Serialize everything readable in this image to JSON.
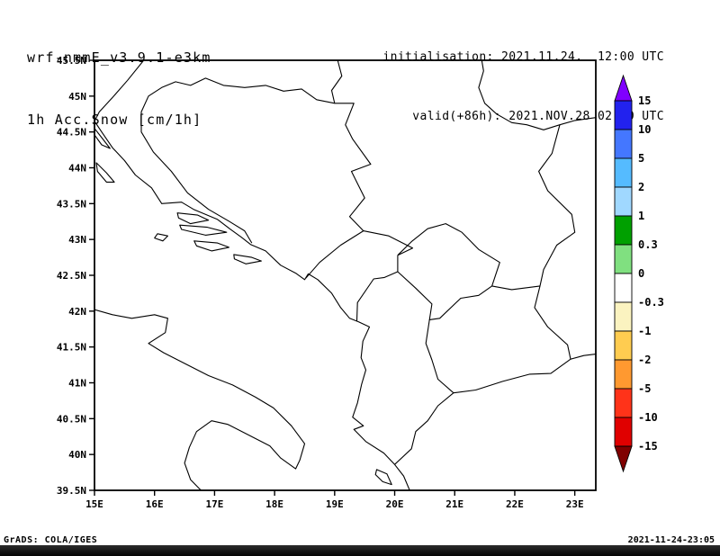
{
  "header": {
    "model": "wrf-nmmE_v3.9.1-e3km",
    "field": "1h Acc.Snow [cm/1h]",
    "init_label": "initialisation: 2021.11.24.  12:00 UTC",
    "valid_label": "valid(+86h): 2021.NOV.28 02:00 UTC"
  },
  "footer": {
    "left": "GrADS: COLA/IGES",
    "right": "2021-11-24-23:05"
  },
  "chart_data": {
    "type": "heatmap",
    "subtype": "geographic-forecast-map",
    "title": "1h Acc.Snow [cm/1h]",
    "model": "wrf-nmmE_v3.9.1-e3km",
    "initialisation": "2021.11.24. 12:00 UTC",
    "valid": "2021.NOV.28 02:00 UTC",
    "lead_hours": 86,
    "region": "western Balkans / Adriatic",
    "lon_range_deg_east": [
      15,
      23.35
    ],
    "lat_range_deg_north": [
      39.5,
      45.5
    ],
    "grid": false,
    "lat_ticks": [
      "45.5N",
      "45N",
      "44.5N",
      "44N",
      "43.5N",
      "43N",
      "42.5N",
      "42N",
      "41.5N",
      "41N",
      "40.5N",
      "40N",
      "39.5N"
    ],
    "lon_ticks": [
      "15E",
      "16E",
      "17E",
      "18E",
      "19E",
      "20E",
      "21E",
      "22E",
      "23E"
    ],
    "legend_position": "right colorbar",
    "colorbar": {
      "units": "cm/1h",
      "levels": [
        15,
        10,
        5,
        2,
        1,
        0.3,
        0,
        -0.3,
        -1,
        -2,
        -5,
        -10,
        -15
      ],
      "labels": [
        "15",
        "10",
        "5",
        "2",
        "1",
        "0.3",
        "0",
        "-0.3",
        "-1",
        "-2",
        "-5",
        "-10",
        "-15"
      ],
      "colors_top_to_bottom": [
        "#8000ff",
        "#2222ee",
        "#4477ff",
        "#55bbff",
        "#a0d8ff",
        "#00a000",
        "#80e080",
        "#ffffff",
        "#fbf3c0",
        "#ffcc50",
        "#ff9930",
        "#ff3319",
        "#e00000",
        "#800000"
      ]
    },
    "note": "no colored snow-accumulation shading visible anywhere in the domain; map shows only black coastlines and country borders on white"
  },
  "map_geo": {
    "coastlines": [
      {
        "name": "adriatic-east-coast",
        "pts": [
          [
            15.82,
            45.5
          ],
          [
            15.55,
            45.22
          ],
          [
            15.3,
            44.98
          ],
          [
            15.08,
            44.78
          ],
          [
            15.0,
            44.65
          ],
          [
            15.12,
            44.5
          ],
          [
            15.3,
            44.28
          ],
          [
            15.5,
            44.1
          ],
          [
            15.68,
            43.9
          ],
          [
            15.95,
            43.72
          ],
          [
            16.12,
            43.5
          ],
          [
            16.45,
            43.52
          ],
          [
            16.65,
            43.42
          ],
          [
            17.05,
            43.28
          ],
          [
            17.25,
            43.15
          ],
          [
            17.45,
            43.03
          ],
          [
            17.6,
            42.93
          ],
          [
            17.85,
            42.84
          ],
          [
            18.1,
            42.64
          ],
          [
            18.35,
            42.53
          ],
          [
            18.5,
            42.44
          ],
          [
            18.56,
            42.52
          ],
          [
            18.72,
            42.44
          ],
          [
            18.95,
            42.25
          ],
          [
            19.1,
            42.05
          ],
          [
            19.25,
            41.9
          ],
          [
            19.4,
            41.85
          ],
          [
            19.58,
            41.78
          ],
          [
            19.47,
            41.58
          ],
          [
            19.44,
            41.35
          ],
          [
            19.52,
            41.18
          ],
          [
            19.45,
            40.98
          ],
          [
            19.38,
            40.72
          ],
          [
            19.3,
            40.52
          ],
          [
            19.48,
            40.4
          ],
          [
            19.32,
            40.35
          ],
          [
            19.52,
            40.18
          ],
          [
            19.82,
            40.02
          ],
          [
            20.0,
            39.86
          ],
          [
            20.15,
            39.7
          ],
          [
            20.25,
            39.5
          ]
        ]
      },
      {
        "name": "italy-coast",
        "pts": [
          [
            15.0,
            42.02
          ],
          [
            15.3,
            41.95
          ],
          [
            15.62,
            41.9
          ],
          [
            16.0,
            41.95
          ],
          [
            16.22,
            41.9
          ],
          [
            16.18,
            41.7
          ],
          [
            15.9,
            41.55
          ],
          [
            16.15,
            41.42
          ],
          [
            16.55,
            41.25
          ],
          [
            16.9,
            41.1
          ],
          [
            17.3,
            40.97
          ],
          [
            17.68,
            40.8
          ],
          [
            17.98,
            40.65
          ],
          [
            18.28,
            40.4
          ],
          [
            18.5,
            40.15
          ],
          [
            18.42,
            39.92
          ],
          [
            18.35,
            39.8
          ],
          [
            18.1,
            39.95
          ],
          [
            17.92,
            40.12
          ],
          [
            17.5,
            40.3
          ],
          [
            17.22,
            40.42
          ],
          [
            16.95,
            40.47
          ],
          [
            16.7,
            40.32
          ],
          [
            16.58,
            40.1
          ],
          [
            16.5,
            39.88
          ],
          [
            16.6,
            39.65
          ],
          [
            16.75,
            39.52
          ],
          [
            16.78,
            39.5
          ]
        ]
      }
    ],
    "islands": [
      {
        "name": "pag",
        "pts": [
          [
            15.0,
            44.55
          ],
          [
            15.14,
            44.4
          ],
          [
            15.26,
            44.27
          ],
          [
            15.12,
            44.32
          ],
          [
            15.0,
            44.46
          ]
        ]
      },
      {
        "name": "dugi-otok",
        "pts": [
          [
            15.03,
            44.07
          ],
          [
            15.2,
            43.93
          ],
          [
            15.33,
            43.8
          ],
          [
            15.2,
            43.8
          ],
          [
            15.05,
            43.95
          ]
        ]
      },
      {
        "name": "vis",
        "pts": [
          [
            16.05,
            43.08
          ],
          [
            16.22,
            43.05
          ],
          [
            16.14,
            42.98
          ],
          [
            16.0,
            43.02
          ]
        ]
      },
      {
        "name": "brac",
        "pts": [
          [
            16.38,
            43.37
          ],
          [
            16.72,
            43.34
          ],
          [
            16.9,
            43.27
          ],
          [
            16.6,
            43.22
          ],
          [
            16.4,
            43.3
          ]
        ]
      },
      {
        "name": "hvar",
        "pts": [
          [
            16.42,
            43.2
          ],
          [
            16.88,
            43.17
          ],
          [
            17.2,
            43.1
          ],
          [
            16.85,
            43.06
          ],
          [
            16.45,
            43.14
          ]
        ]
      },
      {
        "name": "korcula",
        "pts": [
          [
            16.66,
            42.98
          ],
          [
            17.05,
            42.95
          ],
          [
            17.24,
            42.89
          ],
          [
            16.95,
            42.84
          ],
          [
            16.7,
            42.91
          ]
        ]
      },
      {
        "name": "mljet",
        "pts": [
          [
            17.32,
            42.79
          ],
          [
            17.62,
            42.75
          ],
          [
            17.78,
            42.7
          ],
          [
            17.52,
            42.66
          ],
          [
            17.33,
            42.73
          ]
        ]
      },
      {
        "name": "corfu",
        "pts": [
          [
            19.7,
            39.79
          ],
          [
            19.87,
            39.73
          ],
          [
            19.95,
            39.58
          ],
          [
            19.8,
            39.62
          ],
          [
            19.68,
            39.72
          ]
        ]
      }
    ],
    "borders": [
      {
        "name": "bih-outline",
        "pts": [
          [
            17.62,
            42.95
          ],
          [
            17.5,
            43.12
          ],
          [
            17.25,
            43.25
          ],
          [
            16.9,
            43.42
          ],
          [
            16.55,
            43.65
          ],
          [
            16.28,
            43.95
          ],
          [
            15.98,
            44.22
          ],
          [
            15.78,
            44.5
          ],
          [
            15.78,
            44.78
          ],
          [
            15.9,
            45.0
          ],
          [
            16.12,
            45.12
          ],
          [
            16.35,
            45.2
          ],
          [
            16.6,
            45.15
          ],
          [
            16.85,
            45.25
          ],
          [
            17.15,
            45.15
          ],
          [
            17.5,
            45.12
          ],
          [
            17.85,
            45.15
          ],
          [
            18.15,
            45.07
          ],
          [
            18.45,
            45.1
          ],
          [
            18.7,
            44.95
          ],
          [
            19.0,
            44.9
          ],
          [
            19.32,
            44.9
          ],
          [
            19.18,
            44.6
          ],
          [
            19.3,
            44.4
          ],
          [
            19.6,
            44.05
          ],
          [
            19.28,
            43.95
          ],
          [
            19.5,
            43.58
          ],
          [
            19.25,
            43.32
          ],
          [
            19.48,
            43.12
          ],
          [
            19.1,
            42.92
          ],
          [
            18.75,
            42.68
          ],
          [
            18.52,
            42.46
          ]
        ]
      },
      {
        "name": "croatia-serbia",
        "pts": [
          [
            19.05,
            45.5
          ],
          [
            19.12,
            45.28
          ],
          [
            18.95,
            45.08
          ],
          [
            19.0,
            44.9
          ]
        ]
      },
      {
        "name": "serbia-romania-danube",
        "pts": [
          [
            23.35,
            44.7
          ],
          [
            23.0,
            44.66
          ],
          [
            22.75,
            44.6
          ],
          [
            22.48,
            44.53
          ],
          [
            22.2,
            44.6
          ],
          [
            21.95,
            44.63
          ],
          [
            21.7,
            44.75
          ],
          [
            21.5,
            44.9
          ],
          [
            21.4,
            45.12
          ],
          [
            21.48,
            45.35
          ],
          [
            21.45,
            45.5
          ]
        ]
      },
      {
        "name": "serbia-bulgaria",
        "pts": [
          [
            22.75,
            44.6
          ],
          [
            22.62,
            44.2
          ],
          [
            22.4,
            43.95
          ],
          [
            22.55,
            43.68
          ],
          [
            22.95,
            43.35
          ],
          [
            23.0,
            43.1
          ],
          [
            22.7,
            42.92
          ],
          [
            22.48,
            42.58
          ],
          [
            22.42,
            42.35
          ]
        ]
      },
      {
        "name": "kosovo-outline",
        "pts": [
          [
            20.05,
            42.78
          ],
          [
            20.28,
            42.97
          ],
          [
            20.55,
            43.15
          ],
          [
            20.85,
            43.22
          ],
          [
            21.12,
            43.1
          ],
          [
            21.4,
            42.86
          ],
          [
            21.75,
            42.68
          ],
          [
            21.62,
            42.35
          ],
          [
            21.4,
            42.22
          ],
          [
            21.1,
            42.18
          ],
          [
            20.75,
            41.9
          ],
          [
            20.58,
            41.88
          ],
          [
            20.62,
            42.1
          ],
          [
            20.35,
            42.32
          ],
          [
            20.05,
            42.55
          ],
          [
            20.05,
            42.78
          ]
        ]
      },
      {
        "name": "montenegro-albania",
        "pts": [
          [
            19.37,
            41.86
          ],
          [
            19.38,
            42.12
          ],
          [
            19.65,
            42.45
          ],
          [
            19.83,
            42.47
          ],
          [
            20.05,
            42.55
          ]
        ]
      },
      {
        "name": "montenegro-serbia",
        "pts": [
          [
            19.48,
            43.12
          ],
          [
            19.9,
            43.05
          ],
          [
            20.3,
            42.88
          ],
          [
            20.05,
            42.78
          ]
        ]
      },
      {
        "name": "albania-macedonia",
        "pts": [
          [
            20.58,
            41.88
          ],
          [
            20.52,
            41.55
          ],
          [
            20.62,
            41.32
          ],
          [
            20.72,
            41.05
          ],
          [
            20.98,
            40.86
          ]
        ]
      },
      {
        "name": "albania-greece",
        "pts": [
          [
            20.98,
            40.86
          ],
          [
            20.72,
            40.68
          ],
          [
            20.55,
            40.47
          ],
          [
            20.35,
            40.32
          ],
          [
            20.28,
            40.08
          ],
          [
            20.0,
            39.86
          ]
        ]
      },
      {
        "name": "macedonia-greece",
        "pts": [
          [
            20.98,
            40.86
          ],
          [
            21.35,
            40.9
          ],
          [
            21.8,
            41.02
          ],
          [
            22.25,
            41.12
          ],
          [
            22.6,
            41.13
          ],
          [
            22.93,
            41.33
          ]
        ]
      },
      {
        "name": "macedonia-bulgaria",
        "pts": [
          [
            22.42,
            42.35
          ],
          [
            22.33,
            42.05
          ],
          [
            22.55,
            41.78
          ],
          [
            22.88,
            41.53
          ],
          [
            22.93,
            41.33
          ]
        ]
      },
      {
        "name": "greece-bulgaria",
        "pts": [
          [
            22.93,
            41.33
          ],
          [
            23.15,
            41.38
          ],
          [
            23.35,
            41.4
          ]
        ]
      },
      {
        "name": "serbia-macedonia",
        "pts": [
          [
            21.62,
            42.35
          ],
          [
            21.95,
            42.3
          ],
          [
            22.42,
            42.35
          ]
        ]
      }
    ]
  }
}
